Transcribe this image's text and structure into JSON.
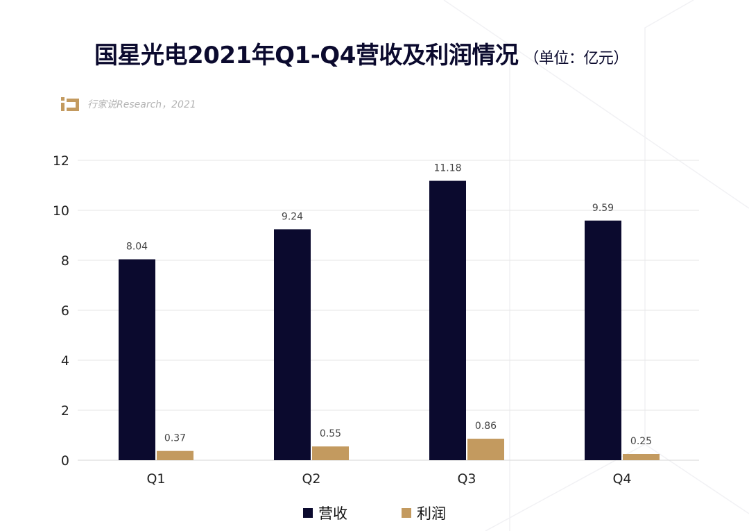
{
  "title": {
    "main": "国星光电2021年Q1-Q4营收及利润情况",
    "unit": "（单位：亿元）"
  },
  "source": {
    "text": "行家说Research，2021",
    "logo_icon": "ix-logo-icon",
    "logo_color": "#c39a5f"
  },
  "colors": {
    "revenue": "#0b0a2e",
    "profit": "#c39a5f",
    "grid": "#e6e6e6",
    "axis_text": "#222222",
    "label_text": "#444444"
  },
  "legend": {
    "revenue": "营收",
    "profit": "利润"
  },
  "chart_data": {
    "type": "bar",
    "categories": [
      "Q1",
      "Q2",
      "Q3",
      "Q4"
    ],
    "series": [
      {
        "name": "营收",
        "values": [
          8.04,
          9.24,
          11.18,
          9.59
        ]
      },
      {
        "name": "利润",
        "values": [
          0.37,
          0.55,
          0.86,
          0.25
        ]
      }
    ],
    "value_labels": [
      [
        "8.04",
        "9.24",
        "11.18",
        "9.59"
      ],
      [
        "0.37",
        "0.55",
        "0.86",
        "0.25"
      ]
    ],
    "yticks": [
      "0",
      "2",
      "4",
      "6",
      "8",
      "10",
      "12"
    ],
    "ylim": [
      0,
      12
    ],
    "grid": true,
    "legend_position": "bottom-center",
    "xlabel": "",
    "ylabel": ""
  }
}
